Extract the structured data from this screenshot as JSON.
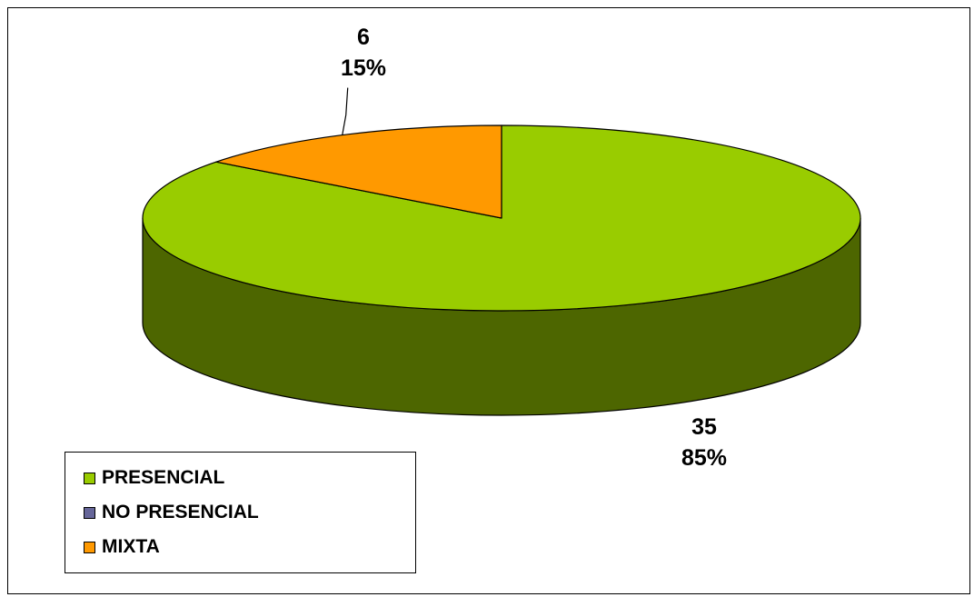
{
  "chart_data": {
    "type": "pie",
    "title": "",
    "categories": [
      "PRESENCIAL",
      "NO PRESENCIAL",
      "MIXTA"
    ],
    "values": [
      35,
      0,
      6
    ],
    "percentages": [
      "85%",
      "0%",
      "15%"
    ],
    "colors": [
      "#99cc00",
      "#666699",
      "#ff9900"
    ],
    "side_colors": [
      "#4d6600",
      "#333366",
      "#996600"
    ],
    "three_d": true,
    "legend_position": "bottom-left",
    "data_labels": [
      {
        "category": "PRESENCIAL",
        "value": "35",
        "percent": "85%"
      },
      {
        "category": "MIXTA",
        "value": "6",
        "percent": "15%"
      }
    ]
  }
}
